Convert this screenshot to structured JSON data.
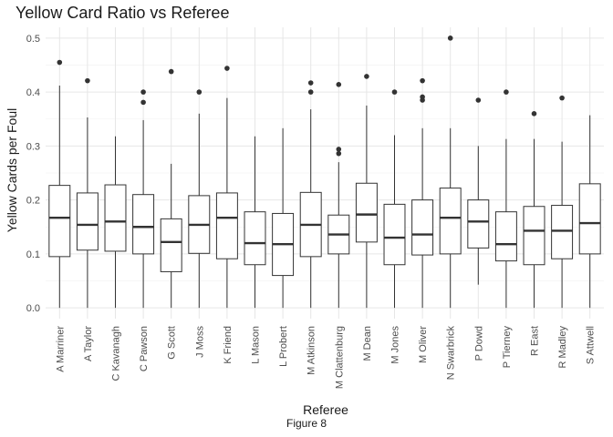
{
  "chart_data": {
    "type": "boxplot",
    "title": "Yellow Card Ratio vs Referee",
    "xlabel": "Referee",
    "ylabel": "Yellow Cards per Foul",
    "caption": "Figure 8",
    "ylim": [
      -0.02,
      0.52
    ],
    "yticks": [
      "0.0",
      "0.1",
      "0.2",
      "0.3",
      "0.4",
      "0.5"
    ],
    "grid": true,
    "categories": [
      "A Marriner",
      "A Taylor",
      "C Kavanagh",
      "C Pawson",
      "G Scott",
      "J Moss",
      "K Friend",
      "L Mason",
      "L Probert",
      "M Atkinson",
      "M Clattenburg",
      "M Dean",
      "M Jones",
      "M Oliver",
      "N Swarbrick",
      "P Dowd",
      "P Tierney",
      "R East",
      "R Madley",
      "S Attwell"
    ],
    "boxes": [
      {
        "min": 0.0,
        "q1": 0.095,
        "median": 0.167,
        "q3": 0.227,
        "max": 0.412,
        "outliers": [
          0.455
        ]
      },
      {
        "min": 0.0,
        "q1": 0.107,
        "median": 0.154,
        "q3": 0.213,
        "max": 0.353,
        "outliers": [
          0.421
        ]
      },
      {
        "min": 0.0,
        "q1": 0.105,
        "median": 0.16,
        "q3": 0.228,
        "max": 0.318,
        "outliers": []
      },
      {
        "min": 0.0,
        "q1": 0.1,
        "median": 0.15,
        "q3": 0.21,
        "max": 0.348,
        "outliers": [
          0.381,
          0.4
        ]
      },
      {
        "min": 0.0,
        "q1": 0.067,
        "median": 0.122,
        "q3": 0.165,
        "max": 0.267,
        "outliers": [
          0.438
        ]
      },
      {
        "min": 0.0,
        "q1": 0.101,
        "median": 0.154,
        "q3": 0.208,
        "max": 0.36,
        "outliers": [
          0.4
        ]
      },
      {
        "min": 0.0,
        "q1": 0.091,
        "median": 0.167,
        "q3": 0.213,
        "max": 0.389,
        "outliers": [
          0.444
        ]
      },
      {
        "min": 0.0,
        "q1": 0.08,
        "median": 0.12,
        "q3": 0.178,
        "max": 0.318,
        "outliers": []
      },
      {
        "min": 0.0,
        "q1": 0.06,
        "median": 0.118,
        "q3": 0.175,
        "max": 0.333,
        "outliers": []
      },
      {
        "min": 0.0,
        "q1": 0.095,
        "median": 0.154,
        "q3": 0.214,
        "max": 0.368,
        "outliers": [
          0.4,
          0.417
        ]
      },
      {
        "min": 0.0,
        "q1": 0.1,
        "median": 0.136,
        "q3": 0.172,
        "max": 0.27,
        "outliers": [
          0.286,
          0.294,
          0.414
        ]
      },
      {
        "min": 0.0,
        "q1": 0.122,
        "median": 0.173,
        "q3": 0.231,
        "max": 0.375,
        "outliers": [
          0.429
        ]
      },
      {
        "min": 0.0,
        "q1": 0.08,
        "median": 0.13,
        "q3": 0.192,
        "max": 0.32,
        "outliers": [
          0.4
        ]
      },
      {
        "min": 0.0,
        "q1": 0.098,
        "median": 0.136,
        "q3": 0.2,
        "max": 0.333,
        "outliers": [
          0.385,
          0.391,
          0.421
        ]
      },
      {
        "min": 0.0,
        "q1": 0.1,
        "median": 0.167,
        "q3": 0.222,
        "max": 0.333,
        "outliers": [
          0.5
        ]
      },
      {
        "min": 0.043,
        "q1": 0.111,
        "median": 0.16,
        "q3": 0.2,
        "max": 0.3,
        "outliers": [
          0.385
        ]
      },
      {
        "min": 0.0,
        "q1": 0.087,
        "median": 0.118,
        "q3": 0.178,
        "max": 0.313,
        "outliers": [
          0.4
        ]
      },
      {
        "min": 0.0,
        "q1": 0.08,
        "median": 0.143,
        "q3": 0.188,
        "max": 0.313,
        "outliers": [
          0.36
        ]
      },
      {
        "min": 0.0,
        "q1": 0.091,
        "median": 0.143,
        "q3": 0.19,
        "max": 0.308,
        "outliers": [
          0.389
        ]
      },
      {
        "min": 0.0,
        "q1": 0.1,
        "median": 0.157,
        "q3": 0.23,
        "max": 0.357,
        "outliers": []
      }
    ]
  }
}
